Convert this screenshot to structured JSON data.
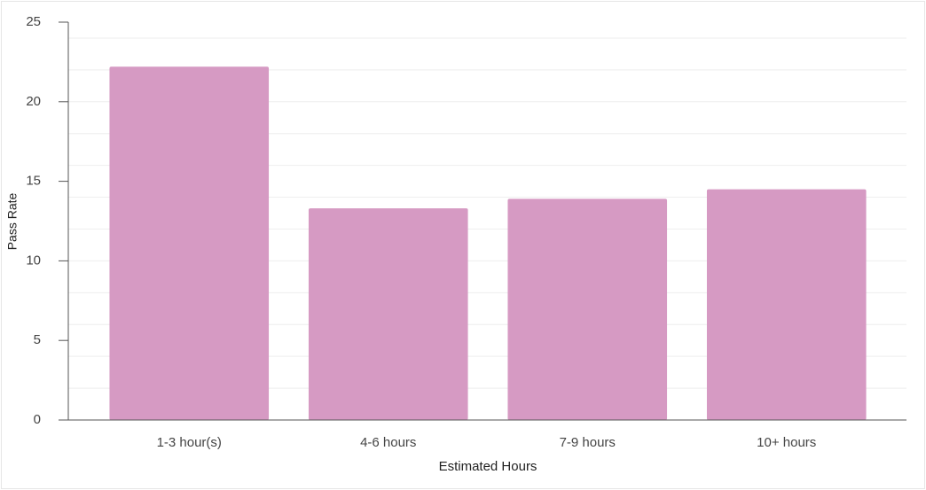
{
  "chart_data": {
    "type": "bar",
    "categories": [
      "1-3 hour(s)",
      "4-6 hours",
      "7-9 hours",
      "10+ hours"
    ],
    "values": [
      22.2,
      13.3,
      13.9,
      14.5
    ],
    "color": "#d69ac3",
    "x_label": "Estimated Hours",
    "y_label": "Pass Rate",
    "ylim": [
      0,
      25
    ],
    "yticks": [
      0,
      5,
      10,
      15,
      20,
      25
    ],
    "grid": true,
    "grid_values": [
      2,
      4,
      6,
      8,
      10,
      12,
      14,
      16,
      18,
      20,
      22,
      24
    ]
  }
}
